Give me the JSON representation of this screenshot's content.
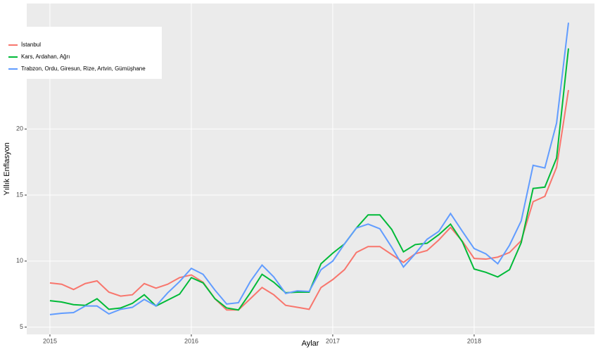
{
  "chart_data": {
    "type": "line",
    "x_label": "Aylar",
    "y_label": "Yıllık Enflasyon",
    "x": [
      2015,
      2015.083,
      2015.167,
      2015.25,
      2015.333,
      2015.417,
      2015.5,
      2015.583,
      2015.667,
      2015.75,
      2015.833,
      2015.917,
      2016,
      2016.083,
      2016.167,
      2016.25,
      2016.333,
      2016.417,
      2016.5,
      2016.583,
      2016.667,
      2016.75,
      2016.833,
      2016.917,
      2017,
      2017.083,
      2017.167,
      2017.25,
      2017.333,
      2017.417,
      2017.5,
      2017.583,
      2017.667,
      2017.75,
      2017.833,
      2017.917,
      2018,
      2018.083,
      2018.167,
      2018.25,
      2018.333,
      2018.417,
      2018.5,
      2018.583,
      2018.667
    ],
    "series": [
      {
        "name": "İstanbul",
        "color": "#f8766d",
        "values": [
          8.35,
          8.25,
          7.85,
          8.3,
          8.5,
          7.65,
          7.35,
          7.45,
          8.3,
          7.95,
          8.25,
          8.75,
          8.95,
          8.4,
          7.15,
          6.3,
          6.3,
          7.15,
          8.0,
          7.45,
          6.65,
          6.5,
          6.35,
          8.0,
          8.6,
          9.35,
          10.65,
          11.1,
          11.1,
          10.5,
          9.9,
          10.55,
          10.8,
          11.6,
          12.55,
          11.5,
          10.2,
          10.15,
          10.3,
          10.65,
          11.55,
          14.5,
          14.9,
          17.1,
          22.95
        ]
      },
      {
        "name": "Kars, Ardahan, Ağrı",
        "color": "#00ba38",
        "values": [
          7.0,
          6.9,
          6.7,
          6.65,
          7.15,
          6.35,
          6.45,
          6.8,
          7.45,
          6.6,
          7.05,
          7.5,
          8.75,
          8.35,
          7.15,
          6.45,
          6.3,
          7.6,
          9.0,
          8.4,
          7.6,
          7.65,
          7.65,
          9.8,
          10.6,
          11.3,
          12.5,
          13.5,
          13.5,
          12.4,
          10.7,
          11.25,
          11.35,
          12.0,
          12.8,
          11.45,
          9.4,
          9.15,
          8.8,
          9.35,
          11.4,
          15.5,
          15.6,
          17.8,
          26.1
        ]
      },
      {
        "name": "Trabzon, Ordu, Giresun, Rize, Artvin, Gümüşhane",
        "color": "#619cff",
        "values": [
          5.95,
          6.05,
          6.1,
          6.6,
          6.6,
          6.0,
          6.35,
          6.5,
          7.1,
          6.6,
          7.6,
          8.45,
          9.45,
          9.0,
          7.8,
          6.75,
          6.85,
          8.45,
          9.7,
          8.8,
          7.55,
          7.75,
          7.7,
          9.35,
          10.0,
          11.3,
          12.5,
          12.8,
          12.45,
          11.05,
          9.55,
          10.55,
          11.65,
          12.25,
          13.6,
          12.25,
          10.95,
          10.55,
          9.8,
          11.2,
          13.05,
          17.25,
          17.05,
          20.45,
          28.05
        ]
      }
    ],
    "xlim": [
      2014.836,
      2018.851
    ],
    "xticks": [
      2015,
      2016,
      2017,
      2018
    ],
    "ylim": [
      4.45,
      29.5
    ],
    "yticks": [
      5,
      10,
      15,
      20
    ],
    "grid": true,
    "legend": "top-left"
  }
}
